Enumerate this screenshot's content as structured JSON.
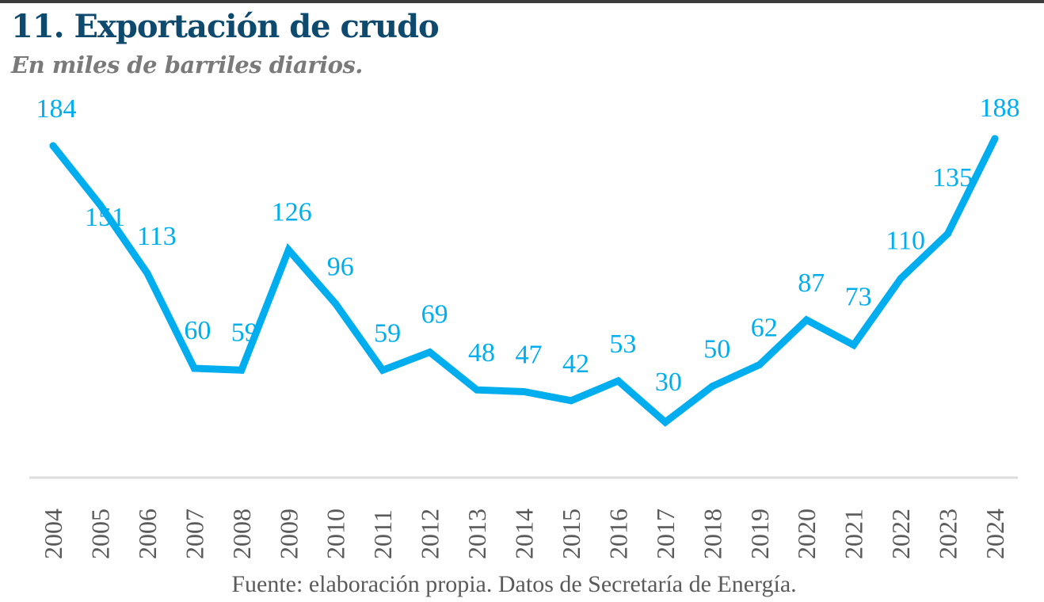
{
  "header": {
    "title": "11. Exportación de crudo",
    "subtitle": "En miles de barriles diarios."
  },
  "footer": {
    "source": "Fuente: elaboración propia. Datos de Secretaría de Energía."
  },
  "colors": {
    "title": "#0d4a6e",
    "subtitle": "#7a7a7a",
    "series": "#00aeef",
    "baseline": "#dcdcdc",
    "tick_text": "#5a5a5a",
    "top_rule": "#3c3c3c"
  },
  "chart_data": {
    "type": "line",
    "title": "11. Exportación de crudo",
    "subtitle": "En miles de barriles diarios.",
    "xlabel": "",
    "ylabel": "",
    "categories": [
      "2004",
      "2005",
      "2006",
      "2007",
      "2008",
      "2009",
      "2010",
      "2011",
      "2012",
      "2013",
      "2014",
      "2015",
      "2016",
      "2017",
      "2018",
      "2019",
      "2020",
      "2021",
      "2022",
      "2023",
      "2024"
    ],
    "series": [
      {
        "name": "Exportación de crudo",
        "values": [
          184,
          151,
          113,
          60,
          59,
          126,
          96,
          59,
          69,
          48,
          47,
          42,
          53,
          30,
          50,
          62,
          87,
          73,
          110,
          135,
          188
        ]
      }
    ],
    "ylim": [
      0,
      190
    ],
    "grid": false,
    "legend": "none",
    "data_labels": true,
    "x_tick_rotation": "vertical"
  }
}
